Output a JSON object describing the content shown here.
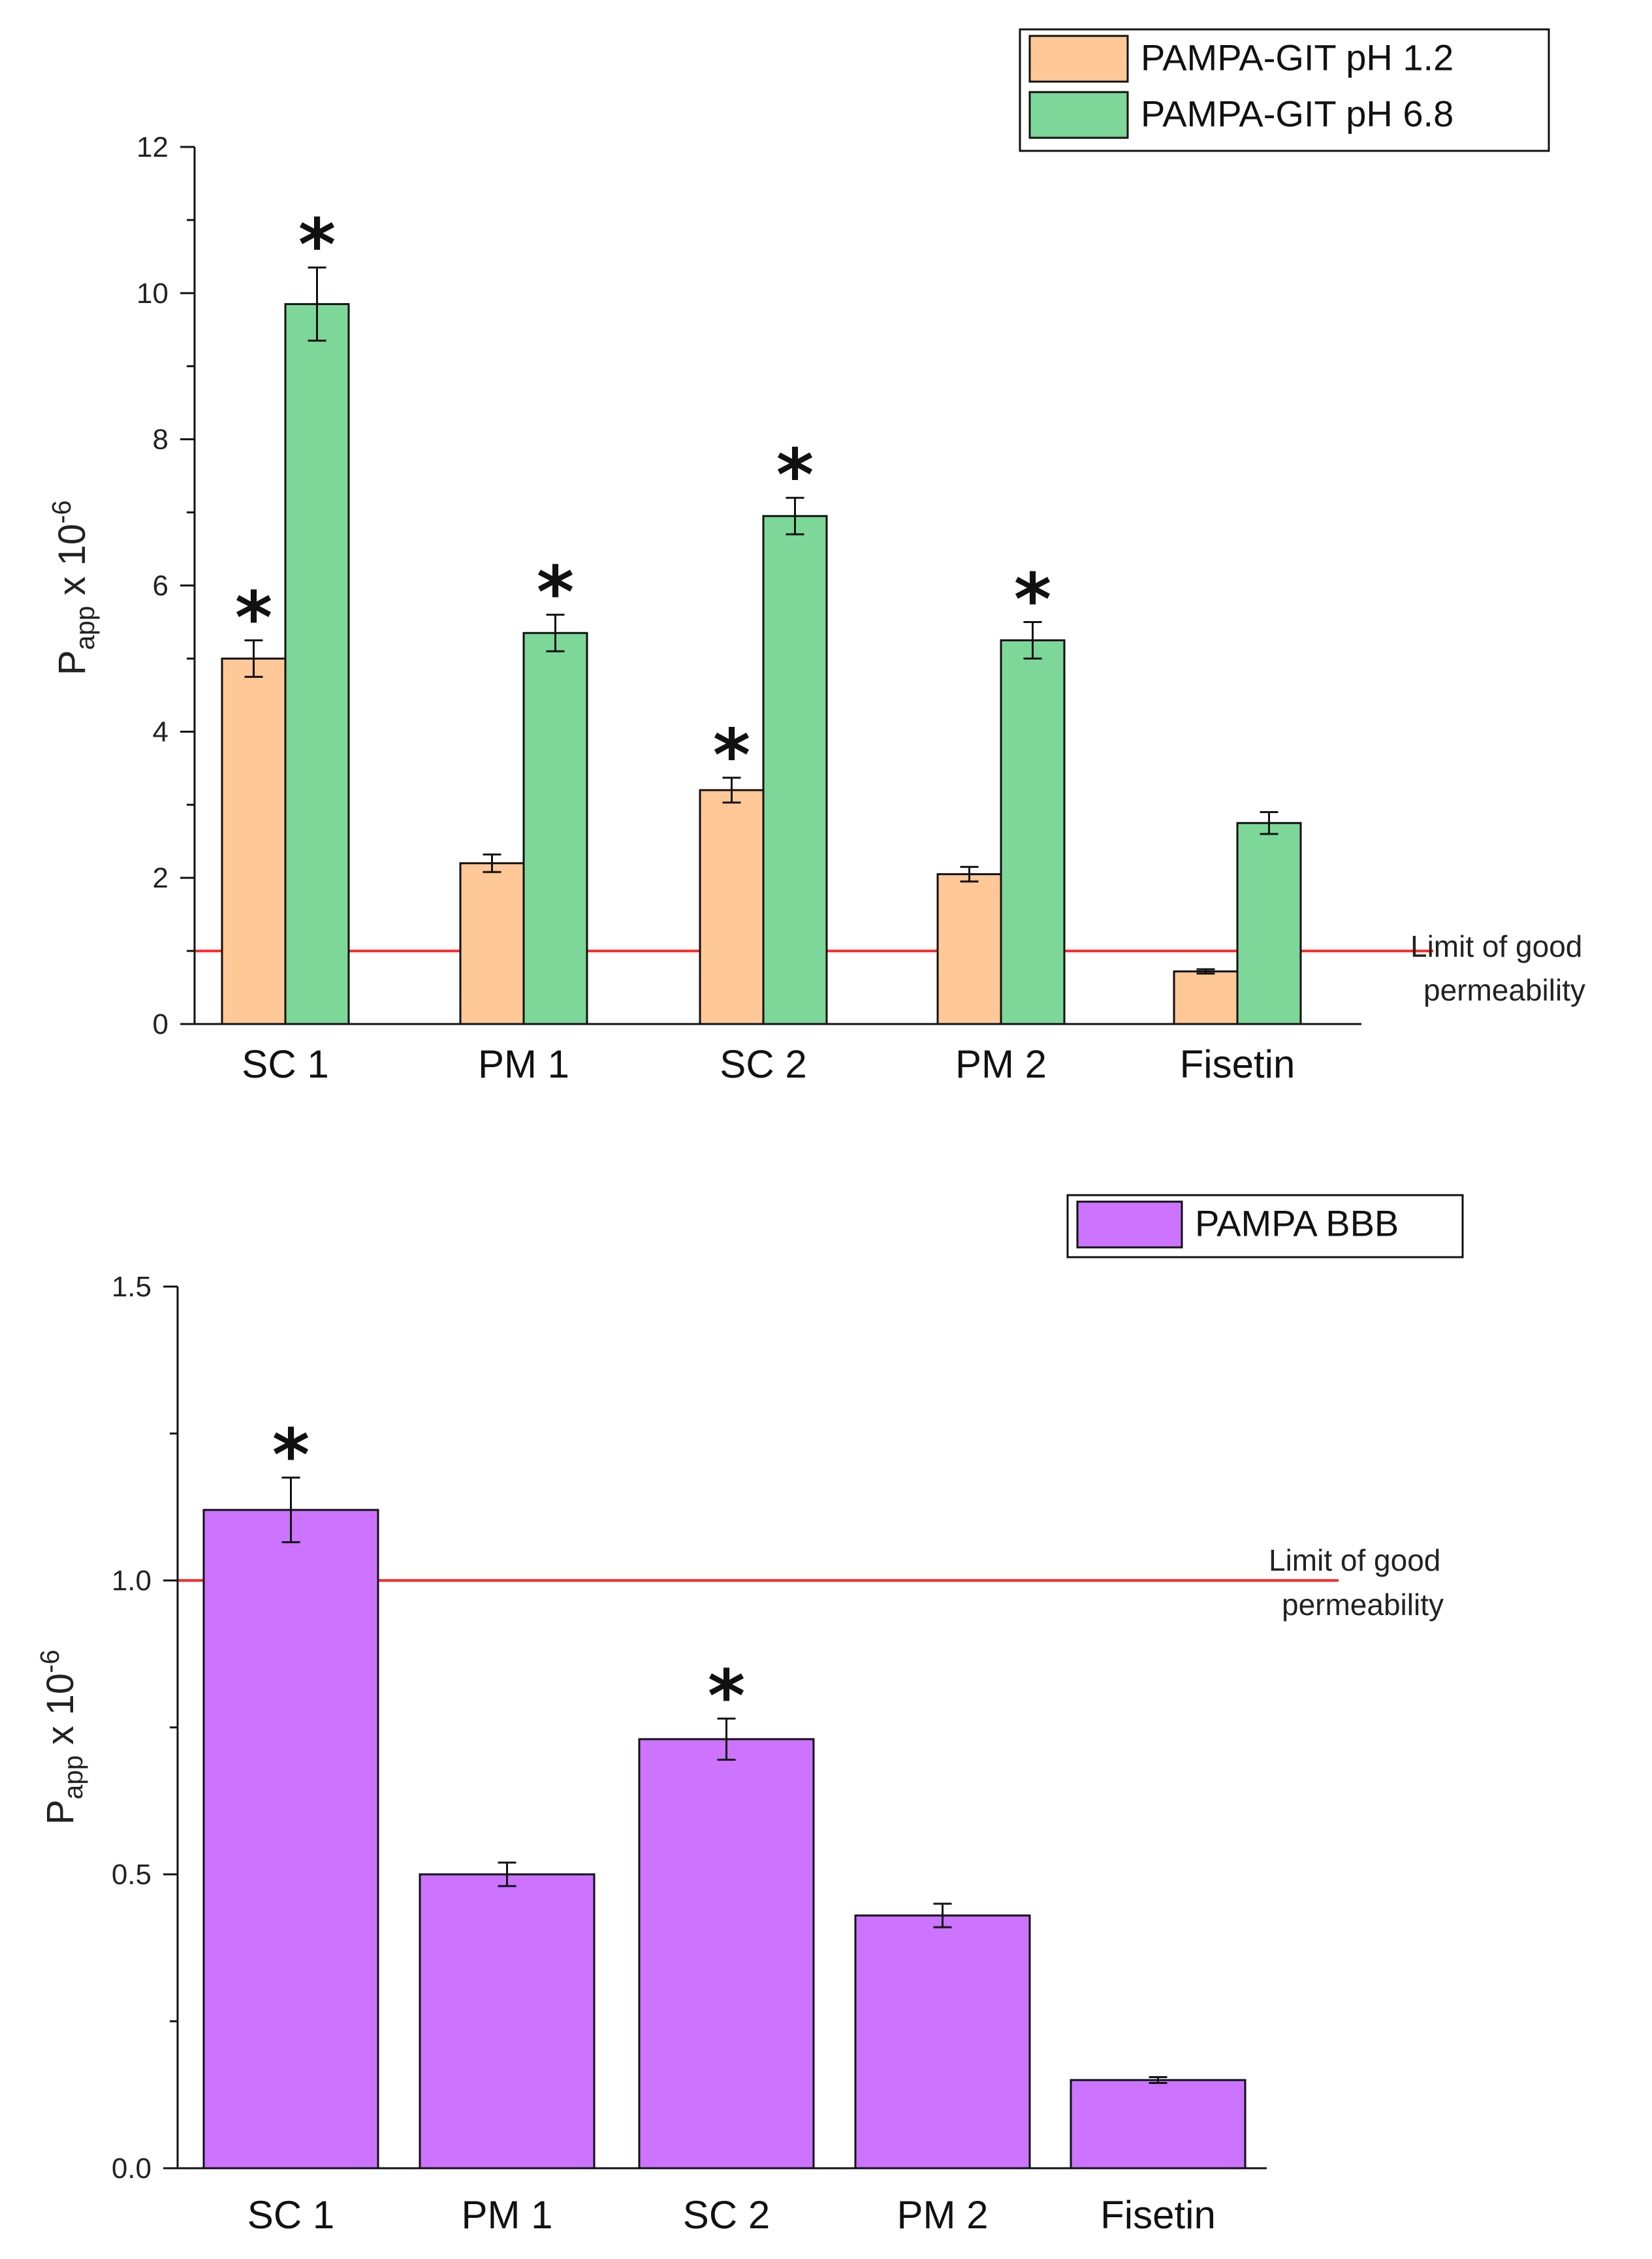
{
  "chart_data": [
    {
      "type": "bar",
      "id": "top",
      "ylabel_main": "P",
      "ylabel_sub": "app",
      "ylabel_rest": " x 10",
      "ylabel_sup": "-6",
      "ylim": [
        0,
        12
      ],
      "yticks": [
        0,
        2,
        4,
        6,
        8,
        10,
        12
      ],
      "categories": [
        "SC 1",
        "PM 1",
        "SC  2",
        "PM 2",
        "Fisetin"
      ],
      "series": [
        {
          "name": "PAMPA-GIT pH 1.2",
          "color": "#ffc896",
          "values": [
            5.0,
            2.2,
            3.2,
            2.05,
            0.72
          ],
          "errors": [
            0.25,
            0.12,
            0.17,
            0.1,
            0.03
          ],
          "significant": [
            true,
            false,
            true,
            false,
            false
          ]
        },
        {
          "name": "PAMPA-GIT pH 6.8",
          "color": "#7dd799",
          "values": [
            9.85,
            5.35,
            6.95,
            5.25,
            2.75
          ],
          "errors": [
            0.5,
            0.25,
            0.25,
            0.25,
            0.15
          ],
          "significant": [
            true,
            true,
            true,
            true,
            false
          ]
        }
      ],
      "reference_line": {
        "value": 1.0,
        "label_line1": "Limit of good",
        "label_line2": "permeability",
        "color": "#ff2a2a"
      },
      "significance_marker": "*",
      "legend_position": "top-right"
    },
    {
      "type": "bar",
      "id": "bottom",
      "ylabel_main": "P",
      "ylabel_sub": "app",
      "ylabel_rest": " x 10",
      "ylabel_sup": "-6",
      "ylim": [
        0,
        1.5
      ],
      "yticks": [
        0.0,
        0.5,
        1.0,
        1.5
      ],
      "ytick_labels": [
        "0.0",
        "0.5",
        "1.0",
        "1.5"
      ],
      "categories": [
        "SC 1",
        "PM 1",
        "SC 2",
        "PM 2",
        "Fisetin"
      ],
      "series": [
        {
          "name": "PAMPA BBB",
          "color": "#cc73ff",
          "values": [
            1.12,
            0.5,
            0.73,
            0.43,
            0.15
          ],
          "errors": [
            0.055,
            0.02,
            0.035,
            0.02,
            0.005
          ],
          "significant": [
            true,
            false,
            true,
            false,
            false
          ]
        }
      ],
      "reference_line": {
        "value": 1.0,
        "label_line1": "Limit of good",
        "label_line2": "permeability",
        "color": "#ff2a2a"
      },
      "significance_marker": "*",
      "legend_position": "top-right"
    }
  ]
}
